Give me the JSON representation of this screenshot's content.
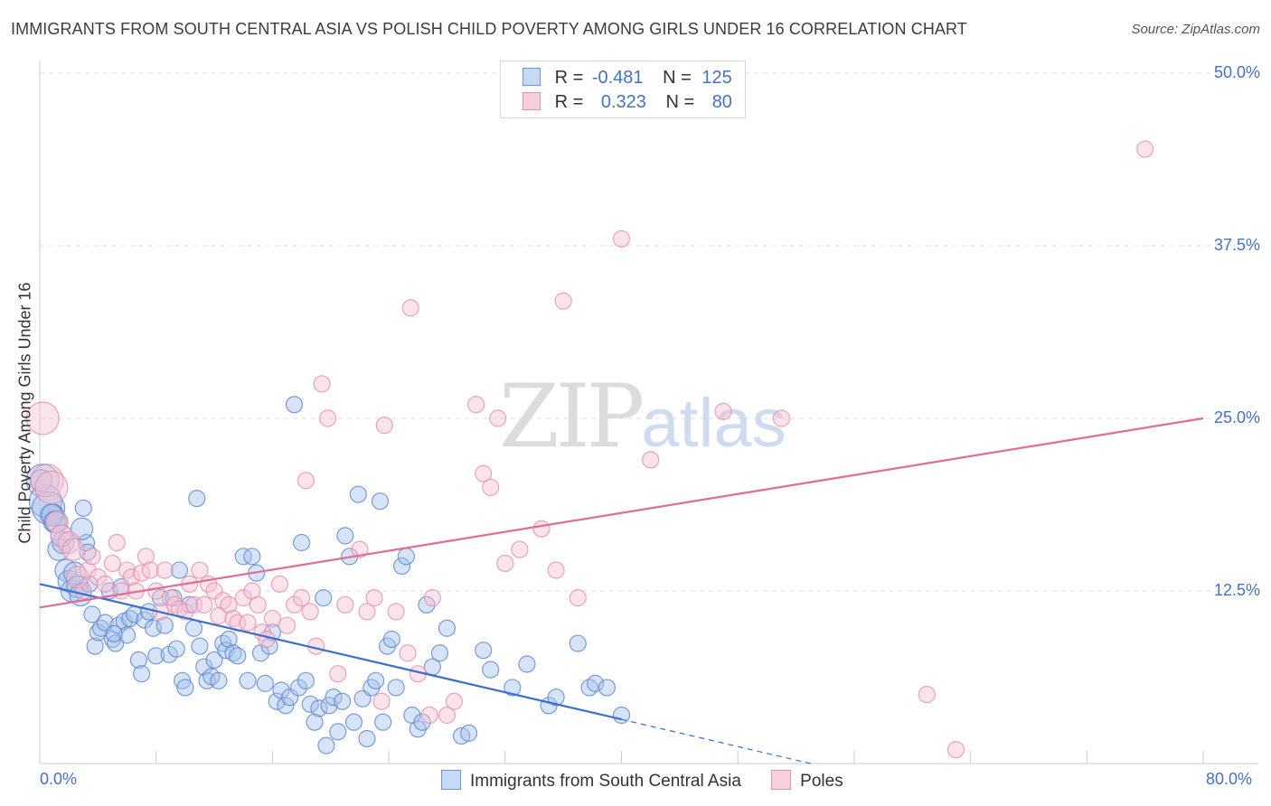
{
  "title": "IMMIGRANTS FROM SOUTH CENTRAL ASIA VS POLISH CHILD POVERTY AMONG GIRLS UNDER 16 CORRELATION CHART",
  "source": "Source: ZipAtlas.com",
  "watermark": {
    "zip": "ZIP",
    "atlas": "atlas"
  },
  "colors": {
    "blue": "#4472c4",
    "blue_fill": "#a7c2ec",
    "pink": "#e06d94",
    "pink_fill": "#f4b7cb",
    "grid": "#dddddd"
  },
  "legend": {
    "rows": [
      {
        "r_label": "R =",
        "r_value": "-0.481",
        "n_label": "N =",
        "n_value": "125"
      },
      {
        "r_label": "R =",
        "r_value": "0.323",
        "n_label": "N =",
        "n_value": "80"
      }
    ]
  },
  "chart_data": {
    "type": "scatter",
    "title": "IMMIGRANTS FROM SOUTH CENTRAL ASIA VS POLISH CHILD POVERTY AMONG GIRLS UNDER 16 CORRELATION CHART",
    "xlabel": "",
    "ylabel": "Child Poverty Among Girls Under 16",
    "xlim": [
      0,
      80
    ],
    "ylim": [
      0,
      52
    ],
    "x_tick_labels": [
      "0.0%",
      "80.0%"
    ],
    "y_ticks": [
      12.5,
      25.0,
      37.5,
      50.0
    ],
    "y_tick_labels": [
      "12.5%",
      "25.0%",
      "37.5%",
      "50.0%"
    ],
    "grid": true,
    "legend_position": "top-center",
    "series": [
      {
        "name": "Immigrants from South Central Asia",
        "color": "#4472c4",
        "R": -0.481,
        "N": 125,
        "trend": {
          "x": [
            0,
            40
          ],
          "y": [
            13.0,
            3.2
          ],
          "dashed_to": [
            53,
            0
          ]
        },
        "points": [
          [
            0.2,
            20.5
          ],
          [
            0.4,
            19
          ],
          [
            0.6,
            18.5
          ],
          [
            0.9,
            18
          ],
          [
            1.0,
            17.5
          ],
          [
            1.3,
            15.5
          ],
          [
            1.6,
            16
          ],
          [
            1.8,
            14
          ],
          [
            2.0,
            13.2
          ],
          [
            2.2,
            12.5
          ],
          [
            2.4,
            13.8
          ],
          [
            2.6,
            12.8
          ],
          [
            2.8,
            12.2
          ],
          [
            3.0,
            18.5
          ],
          [
            3.2,
            16
          ],
          [
            3.4,
            13
          ],
          [
            3.6,
            10.8
          ],
          [
            3.8,
            8.5
          ],
          [
            4.0,
            9.5
          ],
          [
            4.2,
            9.8
          ],
          [
            4.5,
            10.2
          ],
          [
            4.8,
            12.5
          ],
          [
            5.0,
            9
          ],
          [
            5.2,
            8.7
          ],
          [
            5.4,
            10
          ],
          [
            5.6,
            12.8
          ],
          [
            5.8,
            10.3
          ],
          [
            6.0,
            9.3
          ],
          [
            6.2,
            10.5
          ],
          [
            6.5,
            10.8
          ],
          [
            6.8,
            7.5
          ],
          [
            7.0,
            6.5
          ],
          [
            7.2,
            10.4
          ],
          [
            7.5,
            11
          ],
          [
            7.8,
            9.8
          ],
          [
            8.0,
            7.8
          ],
          [
            8.3,
            12
          ],
          [
            8.6,
            10
          ],
          [
            8.9,
            7.9
          ],
          [
            9.2,
            12
          ],
          [
            9.4,
            8.3
          ],
          [
            9.6,
            14
          ],
          [
            9.8,
            6
          ],
          [
            10.0,
            5.5
          ],
          [
            10.3,
            11.5
          ],
          [
            10.6,
            9.8
          ],
          [
            10.8,
            19.2
          ],
          [
            11.0,
            8.5
          ],
          [
            11.3,
            7
          ],
          [
            11.5,
            6
          ],
          [
            11.8,
            6.3
          ],
          [
            12.0,
            7.5
          ],
          [
            12.3,
            6
          ],
          [
            12.6,
            8.7
          ],
          [
            12.8,
            8.2
          ],
          [
            13.0,
            9
          ],
          [
            13.3,
            8
          ],
          [
            13.6,
            7.8
          ],
          [
            14.0,
            15
          ],
          [
            14.3,
            6
          ],
          [
            14.6,
            15
          ],
          [
            14.9,
            13.8
          ],
          [
            15.2,
            8
          ],
          [
            15.5,
            5.8
          ],
          [
            15.8,
            8.5
          ],
          [
            16.0,
            9.5
          ],
          [
            16.3,
            4.5
          ],
          [
            16.6,
            5.3
          ],
          [
            16.9,
            4.2
          ],
          [
            17.2,
            4.8
          ],
          [
            17.5,
            26
          ],
          [
            17.8,
            5.5
          ],
          [
            18.0,
            16
          ],
          [
            18.3,
            6
          ],
          [
            18.6,
            4.3
          ],
          [
            18.9,
            3
          ],
          [
            19.2,
            4
          ],
          [
            19.5,
            12
          ],
          [
            19.7,
            1.3
          ],
          [
            19.9,
            4.2
          ],
          [
            20.2,
            4.8
          ],
          [
            20.5,
            2.3
          ],
          [
            20.8,
            4.5
          ],
          [
            21.0,
            16.5
          ],
          [
            21.3,
            15
          ],
          [
            21.6,
            3
          ],
          [
            21.9,
            19.5
          ],
          [
            22.2,
            4.7
          ],
          [
            22.5,
            1.8
          ],
          [
            22.8,
            5.5
          ],
          [
            23.1,
            6
          ],
          [
            23.4,
            19
          ],
          [
            23.6,
            3
          ],
          [
            23.9,
            8.5
          ],
          [
            24.2,
            9
          ],
          [
            24.5,
            5.5
          ],
          [
            24.9,
            14.3
          ],
          [
            25.2,
            15
          ],
          [
            25.6,
            3.5
          ],
          [
            26.0,
            2.5
          ],
          [
            26.3,
            3
          ],
          [
            26.6,
            11.5
          ],
          [
            27.0,
            7
          ],
          [
            27.5,
            8
          ],
          [
            28.0,
            9.8
          ],
          [
            29.0,
            2
          ],
          [
            29.5,
            2.2
          ],
          [
            30.5,
            8.2
          ],
          [
            31.0,
            6.8
          ],
          [
            32.5,
            5.5
          ],
          [
            33.5,
            7.2
          ],
          [
            35.0,
            4.2
          ],
          [
            35.5,
            4.8
          ],
          [
            37.0,
            8.7
          ],
          [
            37.8,
            5.5
          ],
          [
            38.2,
            5.8
          ],
          [
            39.0,
            5.5
          ],
          [
            40.0,
            3.5
          ],
          [
            0.1,
            20.5
          ],
          [
            0.8,
            18
          ],
          [
            1.1,
            17.5
          ],
          [
            1.5,
            16.5
          ],
          [
            3.3,
            15.3
          ],
          [
            2.9,
            17
          ],
          [
            5.1,
            9.4
          ]
        ]
      },
      {
        "name": "Poles",
        "color": "#e06d94",
        "R": 0.323,
        "N": 80,
        "trend": {
          "x": [
            0,
            80
          ],
          "y": [
            11.3,
            25.0
          ]
        },
        "points": [
          [
            0.2,
            25
          ],
          [
            0.5,
            20.5
          ],
          [
            0.8,
            20
          ],
          [
            1.2,
            17.5
          ],
          [
            1.5,
            16.5
          ],
          [
            2.0,
            16
          ],
          [
            2.3,
            15.5
          ],
          [
            2.6,
            13.5
          ],
          [
            3.0,
            12.5
          ],
          [
            3.3,
            14
          ],
          [
            3.6,
            15
          ],
          [
            4.0,
            13.5
          ],
          [
            4.5,
            13
          ],
          [
            5.0,
            14.5
          ],
          [
            5.3,
            16
          ],
          [
            5.6,
            12.5
          ],
          [
            6.0,
            14
          ],
          [
            6.3,
            13.5
          ],
          [
            6.6,
            12.5
          ],
          [
            7.0,
            13.8
          ],
          [
            7.3,
            15
          ],
          [
            7.6,
            14
          ],
          [
            8.0,
            12.5
          ],
          [
            8.3,
            11
          ],
          [
            8.6,
            14
          ],
          [
            9.0,
            12
          ],
          [
            9.3,
            11.5
          ],
          [
            9.6,
            11.2
          ],
          [
            10.0,
            11
          ],
          [
            10.3,
            13
          ],
          [
            10.6,
            11.5
          ],
          [
            11.0,
            14
          ],
          [
            11.3,
            11.5
          ],
          [
            11.6,
            13
          ],
          [
            12.0,
            12.5
          ],
          [
            12.3,
            10.7
          ],
          [
            12.6,
            11.8
          ],
          [
            13.0,
            11.5
          ],
          [
            13.3,
            10.5
          ],
          [
            13.6,
            10.2
          ],
          [
            14.0,
            12
          ],
          [
            14.3,
            10.2
          ],
          [
            14.6,
            12.5
          ],
          [
            15.0,
            11.5
          ],
          [
            15.3,
            9.5
          ],
          [
            15.6,
            9
          ],
          [
            16.0,
            10.5
          ],
          [
            16.5,
            13
          ],
          [
            17.0,
            10
          ],
          [
            17.5,
            11.5
          ],
          [
            18.0,
            12
          ],
          [
            18.3,
            20.5
          ],
          [
            18.6,
            11
          ],
          [
            19.0,
            8.5
          ],
          [
            19.4,
            27.5
          ],
          [
            19.8,
            25
          ],
          [
            20.5,
            6.5
          ],
          [
            21.0,
            11.5
          ],
          [
            22.0,
            15.5
          ],
          [
            22.5,
            11
          ],
          [
            23.0,
            12
          ],
          [
            23.5,
            4.5
          ],
          [
            24.5,
            11
          ],
          [
            25.5,
            33
          ],
          [
            26.0,
            6.5
          ],
          [
            27.0,
            12
          ],
          [
            28.0,
            3.5
          ],
          [
            28.5,
            4.5
          ],
          [
            30.0,
            26
          ],
          [
            31.0,
            20
          ],
          [
            32.0,
            14.5
          ],
          [
            33.0,
            15.5
          ],
          [
            34.5,
            17
          ],
          [
            35.5,
            14
          ],
          [
            36.0,
            33.5
          ],
          [
            37.0,
            12
          ],
          [
            40.0,
            38
          ],
          [
            42.0,
            22
          ],
          [
            47.0,
            25.5
          ],
          [
            51.0,
            25
          ]
        ]
      }
    ],
    "extra_points": {
      "Poles": [
        [
          61,
          5
        ],
        [
          63,
          1
        ],
        [
          76,
          44.5
        ],
        [
          30.5,
          21
        ],
        [
          31.5,
          25
        ],
        [
          25.3,
          8
        ],
        [
          23.7,
          24.5
        ],
        [
          26.8,
          3.5
        ]
      ]
    }
  }
}
